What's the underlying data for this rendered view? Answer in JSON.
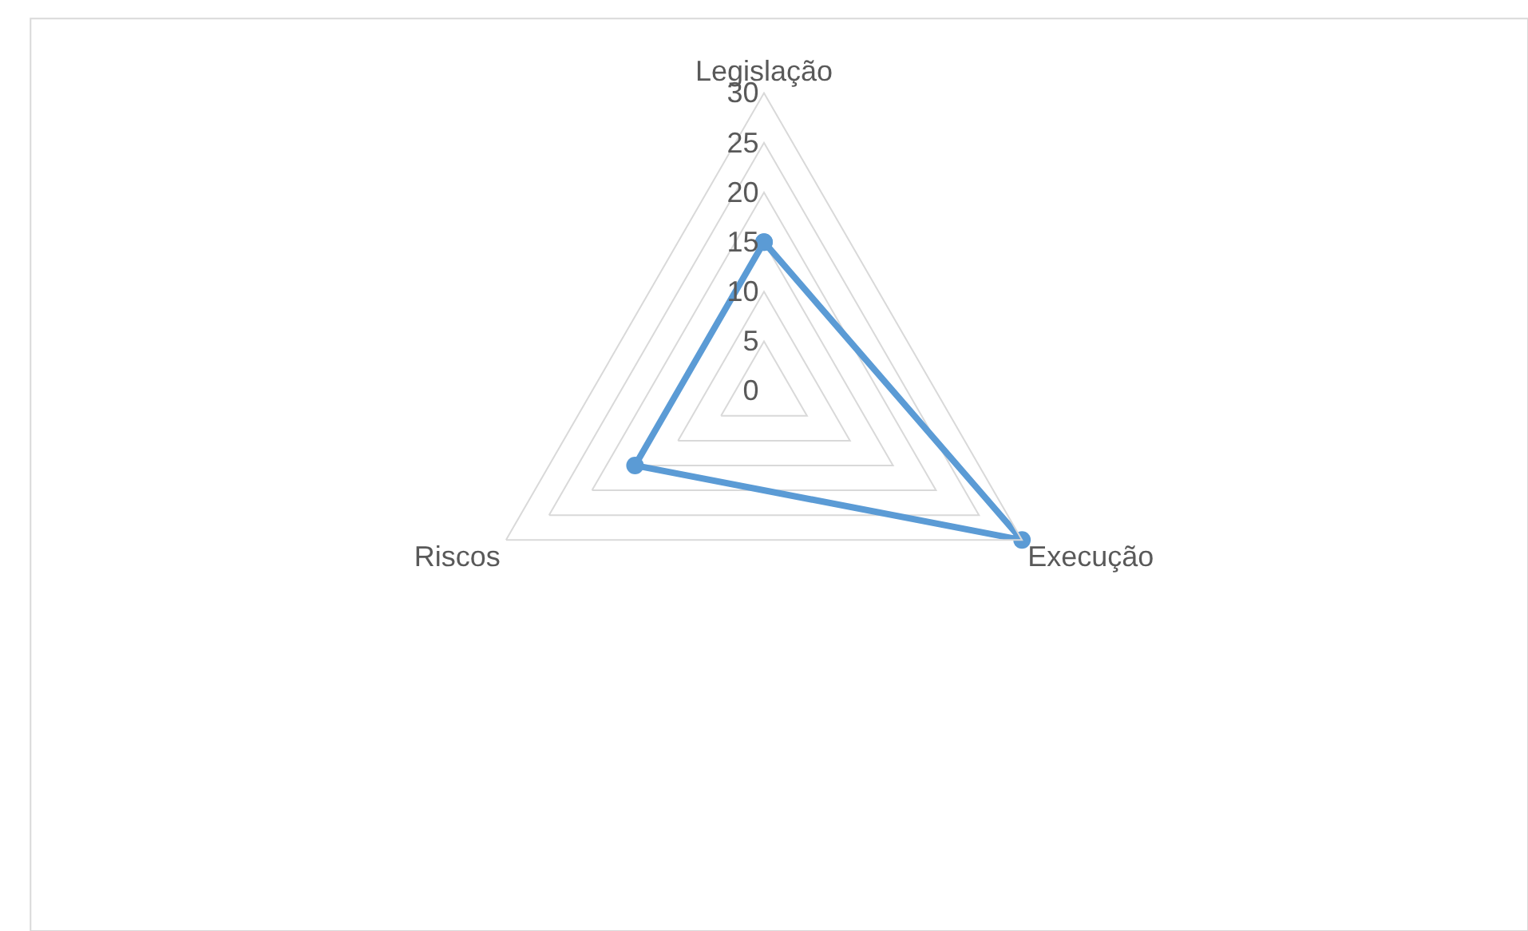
{
  "chart_data": {
    "type": "radar",
    "categories": [
      "Legislação",
      "Execução",
      "Riscos"
    ],
    "series": [
      {
        "color": "#5b9bd5",
        "values": [
          15,
          30,
          15
        ]
      }
    ],
    "ylim": [
      0,
      30
    ],
    "yticks": [
      0,
      5,
      10,
      15,
      20,
      25,
      30
    ],
    "grid": true,
    "marker": "circle",
    "line_style": "solid"
  }
}
